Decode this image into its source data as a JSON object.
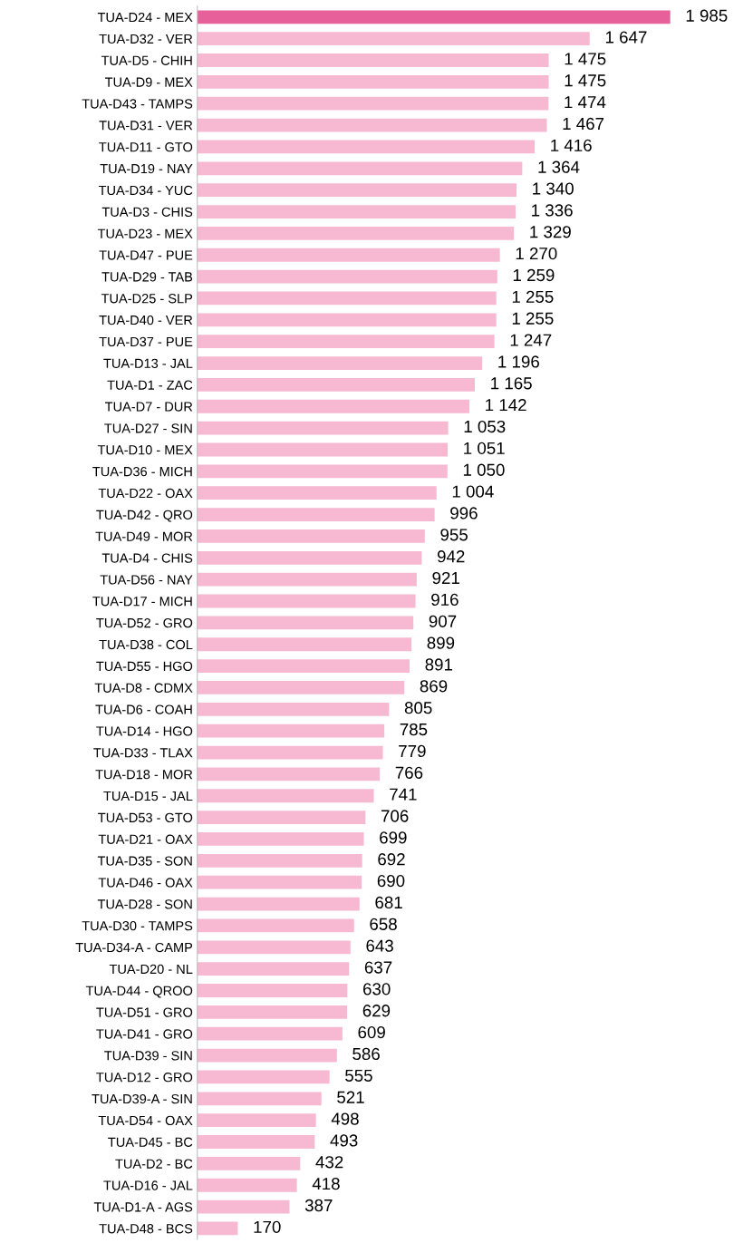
{
  "chart_data": {
    "type": "bar",
    "orientation": "horizontal",
    "categories": [
      "TUA-D24 - MEX",
      "TUA-D32 - VER",
      "TUA-D5 - CHIH",
      "TUA-D9 - MEX",
      "TUA-D43 - TAMPS",
      "TUA-D31 - VER",
      "TUA-D11 - GTO",
      "TUA-D19 - NAY",
      "TUA-D34 - YUC",
      "TUA-D3 - CHIS",
      "TUA-D23 - MEX",
      "TUA-D47 - PUE",
      "TUA-D29 - TAB",
      "TUA-D25 - SLP",
      "TUA-D40 - VER",
      "TUA-D37 - PUE",
      "TUA-D13 - JAL",
      "TUA-D1 - ZAC",
      "TUA-D7 - DUR",
      "TUA-D27 - SIN",
      "TUA-D10 - MEX",
      "TUA-D36 - MICH",
      "TUA-D22 - OAX",
      "TUA-D42 - QRO",
      "TUA-D49 - MOR",
      "TUA-D4 - CHIS",
      "TUA-D56 - NAY",
      "TUA-D17 - MICH",
      "TUA-D52 - GRO",
      "TUA-D38 - COL",
      "TUA-D55 - HGO",
      "TUA-D8 - CDMX",
      "TUA-D6 - COAH",
      "TUA-D14 - HGO",
      "TUA-D33 - TLAX",
      "TUA-D18 - MOR",
      "TUA-D15 - JAL",
      "TUA-D53 - GTO",
      "TUA-D21 - OAX",
      "TUA-D35 - SON",
      "TUA-D46 - OAX",
      "TUA-D28 - SON",
      "TUA-D30 - TAMPS",
      "TUA-D34-A - CAMP",
      "TUA-D20 - NL",
      "TUA-D44 - QROO",
      "TUA-D51 - GRO",
      "TUA-D41 - GRO",
      "TUA-D39 - SIN",
      "TUA-D12 - GRO",
      "TUA-D39-A - SIN",
      "TUA-D54 - OAX",
      "TUA-D45 - BC",
      "TUA-D2 - BC",
      "TUA-D16 - JAL",
      "TUA-D1-A - AGS",
      "TUA-D48 - BCS"
    ],
    "values": [
      1985,
      1647,
      1475,
      1475,
      1474,
      1467,
      1416,
      1364,
      1340,
      1336,
      1329,
      1270,
      1259,
      1255,
      1255,
      1247,
      1196,
      1165,
      1142,
      1053,
      1051,
      1050,
      1004,
      996,
      955,
      942,
      921,
      916,
      907,
      899,
      891,
      869,
      805,
      785,
      779,
      766,
      741,
      706,
      699,
      692,
      690,
      681,
      658,
      643,
      637,
      630,
      629,
      609,
      586,
      555,
      521,
      498,
      493,
      432,
      418,
      387,
      170
    ],
    "value_labels": [
      "1 985",
      "1 647",
      "1 475",
      "1 475",
      "1 474",
      "1 467",
      "1 416",
      "1 364",
      "1 340",
      "1 336",
      "1 329",
      "1 270",
      "1 259",
      "1 255",
      "1 255",
      "1 247",
      "1 196",
      "1 165",
      "1 142",
      "1 053",
      "1 051",
      "1 050",
      "1 004",
      "996",
      "955",
      "942",
      "921",
      "916",
      "907",
      "899",
      "891",
      "869",
      "805",
      "785",
      "779",
      "766",
      "741",
      "706",
      "699",
      "692",
      "690",
      "681",
      "658",
      "643",
      "637",
      "630",
      "629",
      "609",
      "586",
      "555",
      "521",
      "498",
      "493",
      "432",
      "418",
      "387",
      "170"
    ],
    "colors": [
      "#e8609a",
      "#f6b9d1",
      "#f6b9d1",
      "#f6b9d1",
      "#f6b9d1",
      "#f6b9d1",
      "#f6b9d1",
      "#f6b9d1",
      "#f6b9d1",
      "#f6b9d1",
      "#f6b9d1",
      "#f6b9d1",
      "#f6b9d1",
      "#f6b9d1",
      "#f6b9d1",
      "#f6b9d1",
      "#f6b9d1",
      "#f6b9d1",
      "#f6b9d1",
      "#f6b9d1",
      "#f6b9d1",
      "#f6b9d1",
      "#f6b9d1",
      "#f6b9d1",
      "#f6b9d1",
      "#f6b9d1",
      "#f6b9d1",
      "#f6b9d1",
      "#f6b9d1",
      "#f6b9d1",
      "#f6b9d1",
      "#f6b9d1",
      "#f6b9d1",
      "#f6b9d1",
      "#f6b9d1",
      "#f6b9d1",
      "#f6b9d1",
      "#f6b9d1",
      "#f6b9d1",
      "#f6b9d1",
      "#f6b9d1",
      "#f6b9d1",
      "#f6b9d1",
      "#f6b9d1",
      "#f6b9d1",
      "#f6b9d1",
      "#f6b9d1",
      "#f6b9d1",
      "#f6b9d1",
      "#f6b9d1",
      "#f6b9d1",
      "#f6b9d1",
      "#f6b9d1",
      "#f6b9d1",
      "#f6b9d1",
      "#f6b9d1",
      "#f6b9d1"
    ],
    "tick_labels": "y",
    "grid": false,
    "legend": false
  }
}
